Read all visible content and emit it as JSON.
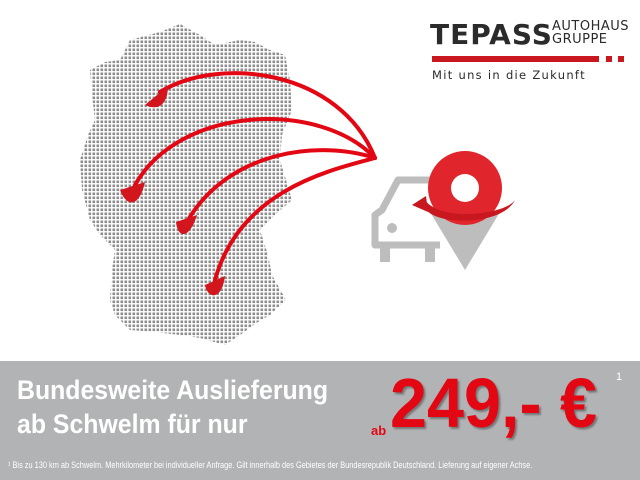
{
  "logo": {
    "brand": "TEPASS",
    "sub_line1": "AUTOHAUS",
    "sub_line2": "GRUPPE",
    "tagline": "Mit uns in die Zukunft"
  },
  "banner": {
    "headline_line1": "Bundesweite Auslieferung",
    "headline_line2": "ab Schwelm für nur",
    "price_prefix": "ab",
    "price": "249,- €",
    "footnote_marker": "1",
    "footnote": "¹ Bis zu 130 km ab Schwelm. Mehrkilometer bei individueller Anfrage. Gilt innerhalb des Gebietes der Bundesrepublik Deutschland. Lieferung auf eigener Achse."
  },
  "icons": [
    "germany-dot-map",
    "delivery-arrows",
    "car-icon",
    "location-pin-icon"
  ],
  "colors": {
    "accent": "#e30613",
    "band": "#b2b3b5",
    "text_dark": "#2b2b2b",
    "icon_gray": "#b9b9b9"
  }
}
